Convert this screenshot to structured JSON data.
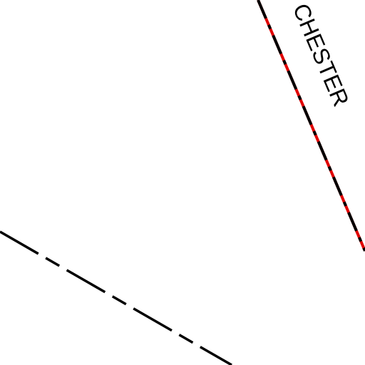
{
  "map": {
    "road_label": "CHESTER"
  }
}
